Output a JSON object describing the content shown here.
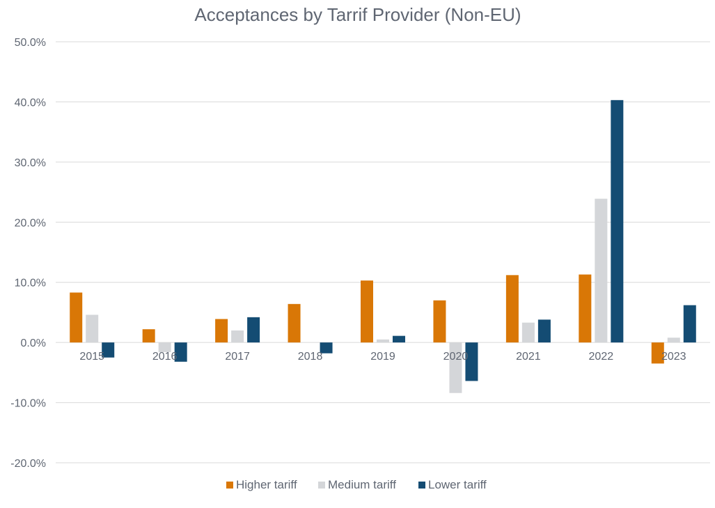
{
  "chart_data": {
    "type": "bar",
    "title": "Acceptances by Tarrif Provider (Non-EU)",
    "xlabel": "",
    "ylabel": "",
    "ylim": [
      -0.2,
      0.5
    ],
    "yticks": [
      0.5,
      0.4,
      0.3,
      0.2,
      0.1,
      0.0,
      -0.1,
      -0.2
    ],
    "ytick_labels": [
      "50.0%",
      "40.0%",
      "30.0%",
      "20.0%",
      "10.0%",
      "0.0%",
      "-10.0%",
      "-20.0%"
    ],
    "categories": [
      "2015",
      "2016",
      "2017",
      "2018",
      "2019",
      "2020",
      "2021",
      "2022",
      "2023"
    ],
    "series": [
      {
        "name": "Higher tariff",
        "color": "#d97706",
        "values": [
          0.083,
          0.022,
          0.039,
          0.064,
          0.103,
          0.07,
          0.112,
          0.113,
          -0.035
        ]
      },
      {
        "name": "Medium tariff",
        "color": "#d4d6d9",
        "values": [
          0.046,
          -0.016,
          0.02,
          0.0,
          0.005,
          -0.084,
          0.033,
          0.239,
          0.008
        ]
      },
      {
        "name": "Lower tariff",
        "color": "#144c73",
        "values": [
          -0.025,
          -0.032,
          0.042,
          -0.018,
          0.011,
          -0.064,
          0.038,
          0.403,
          0.062
        ]
      }
    ],
    "grid": true,
    "legend": "bottom"
  }
}
